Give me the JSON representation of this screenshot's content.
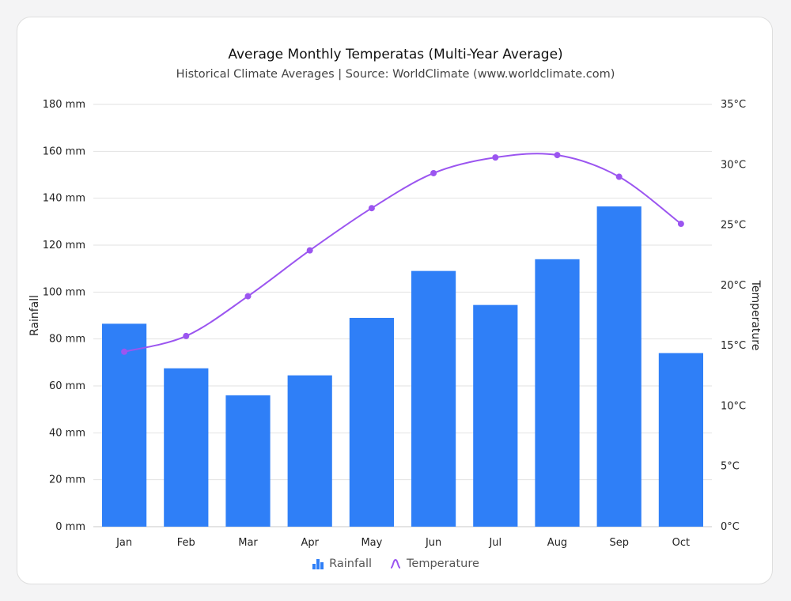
{
  "chart_data": {
    "type": "bar",
    "title": "Average Monthly Temperatas (Multi-Year Average)",
    "subtitle": "Historical Climate Averages | Source: WorldClimate (www.worldclimate.com)",
    "categories": [
      "Jan",
      "Feb",
      "Mar",
      "Apr",
      "May",
      "Jun",
      "Jul",
      "Aug",
      "Sep",
      "Oct"
    ],
    "series": [
      {
        "name": "Rainfall",
        "type": "bar",
        "axis": "left",
        "color": "#2f7ff7",
        "values": [
          86.5,
          67.5,
          56,
          64.5,
          89,
          109,
          94.5,
          114,
          136.5,
          74
        ]
      },
      {
        "name": "Temperature",
        "type": "line",
        "axis": "right",
        "color": "#9b55f0",
        "values": [
          14.5,
          15.8,
          19.1,
          22.9,
          26.4,
          29.3,
          30.6,
          30.8,
          29,
          25.1
        ]
      }
    ],
    "y_left": {
      "label": "Rainfall",
      "min": 0,
      "max": 180,
      "step": 20,
      "unit": " mm"
    },
    "y_right": {
      "label": "Temperature",
      "min": 0,
      "max": 35,
      "step": 5,
      "unit": "°C"
    },
    "grid": true,
    "legend_position": "bottom"
  },
  "legend": {
    "rainfall": "Rainfall",
    "temperature": "Temperature",
    "rainfall_icon": "bar-chart-icon",
    "temperature_icon": "wave-line-icon"
  }
}
